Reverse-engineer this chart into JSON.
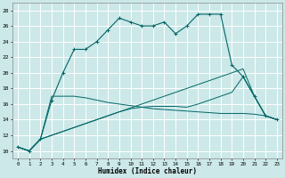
{
  "xlabel": "Humidex (Indice chaleur)",
  "bg_color": "#cce8e8",
  "grid_color": "#ffffff",
  "line_color": "#006666",
  "xlim": [
    -0.5,
    23.5
  ],
  "ylim": [
    9,
    29
  ],
  "yticks": [
    10,
    12,
    14,
    16,
    18,
    20,
    22,
    24,
    26,
    28
  ],
  "xticks": [
    0,
    1,
    2,
    3,
    4,
    5,
    6,
    7,
    8,
    9,
    10,
    11,
    12,
    13,
    14,
    15,
    16,
    17,
    18,
    19,
    20,
    21,
    22,
    23
  ],
  "line1_x": [
    0,
    1,
    2,
    3,
    4,
    5,
    6,
    7,
    8,
    9,
    10,
    11,
    12,
    13,
    14,
    15,
    16,
    17,
    18,
    19,
    20,
    21,
    22,
    23
  ],
  "line1_y": [
    10.5,
    10.0,
    11.5,
    16.5,
    20.0,
    23.0,
    23.0,
    24.0,
    25.5,
    27.0,
    26.5,
    26.0,
    26.0,
    26.5,
    25.0,
    26.0,
    27.5,
    27.5,
    27.5,
    21.0,
    19.5,
    17.0,
    14.5,
    14.0
  ],
  "line2_x": [
    0,
    1,
    2,
    3,
    4,
    5,
    6,
    7,
    8,
    9,
    10,
    11,
    12,
    13,
    14,
    15,
    16,
    17,
    18,
    19,
    20,
    21,
    22,
    23
  ],
  "line2_y": [
    10.5,
    10.0,
    11.5,
    17.0,
    17.0,
    17.0,
    16.8,
    16.5,
    16.2,
    16.0,
    15.8,
    15.6,
    15.4,
    15.3,
    15.2,
    15.1,
    15.0,
    14.9,
    14.8,
    14.8,
    14.8,
    14.7,
    14.5,
    14.0
  ],
  "line3_x": [
    0,
    1,
    2,
    3,
    4,
    5,
    6,
    7,
    8,
    9,
    10,
    11,
    12,
    13,
    14,
    15,
    16,
    17,
    18,
    19,
    20,
    21,
    22,
    23
  ],
  "line3_y": [
    10.5,
    10.0,
    11.5,
    12.0,
    12.5,
    13.0,
    13.5,
    14.0,
    14.5,
    15.0,
    15.4,
    15.6,
    15.7,
    15.7,
    15.7,
    15.6,
    16.0,
    16.5,
    17.0,
    17.5,
    19.5,
    17.0,
    14.5,
    14.0
  ],
  "line4_x": [
    0,
    1,
    2,
    3,
    4,
    5,
    6,
    7,
    8,
    9,
    10,
    11,
    12,
    13,
    14,
    15,
    16,
    17,
    18,
    19,
    20,
    21,
    22,
    23
  ],
  "line4_y": [
    10.5,
    10.0,
    11.5,
    12.0,
    12.5,
    13.0,
    13.5,
    14.0,
    14.5,
    15.0,
    15.5,
    16.0,
    16.5,
    17.0,
    17.5,
    18.0,
    18.5,
    19.0,
    19.5,
    20.0,
    20.5,
    17.0,
    14.5,
    14.0
  ]
}
